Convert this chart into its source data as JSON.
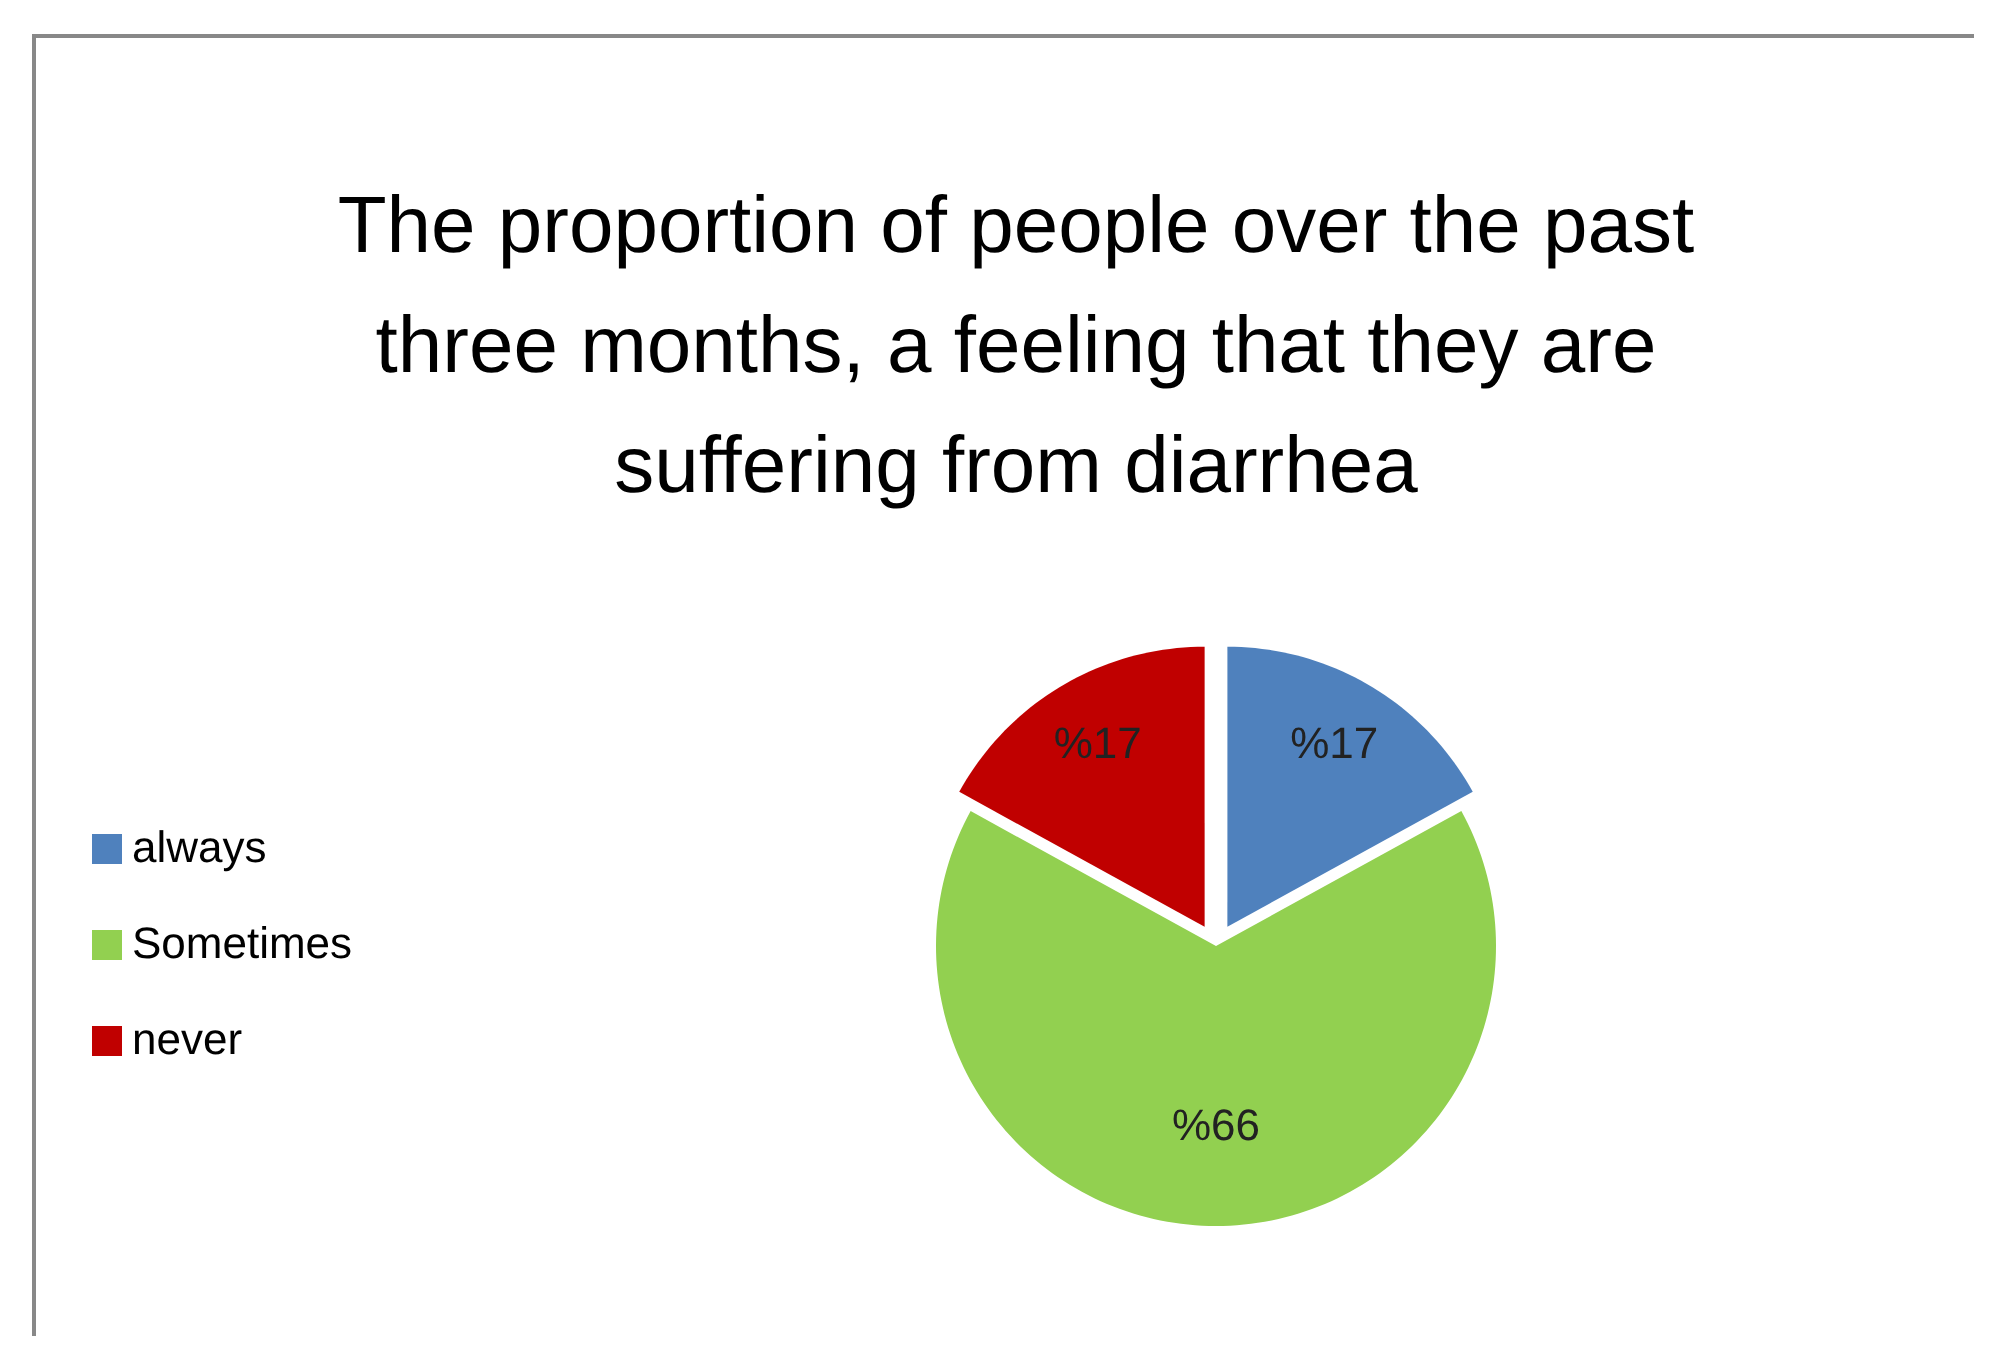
{
  "chart_data": {
    "type": "pie",
    "title": "The proportion of people over the past three months, a feeling that they are suffering from diarrhea",
    "categories": [
      "always",
      "Sometimes",
      "never"
    ],
    "values": [
      17,
      66,
      17
    ],
    "colors": [
      "#4f81bd",
      "#92d050",
      "#c00000"
    ],
    "value_labels": [
      "%17",
      "%66",
      "%17"
    ],
    "legend": "left"
  }
}
